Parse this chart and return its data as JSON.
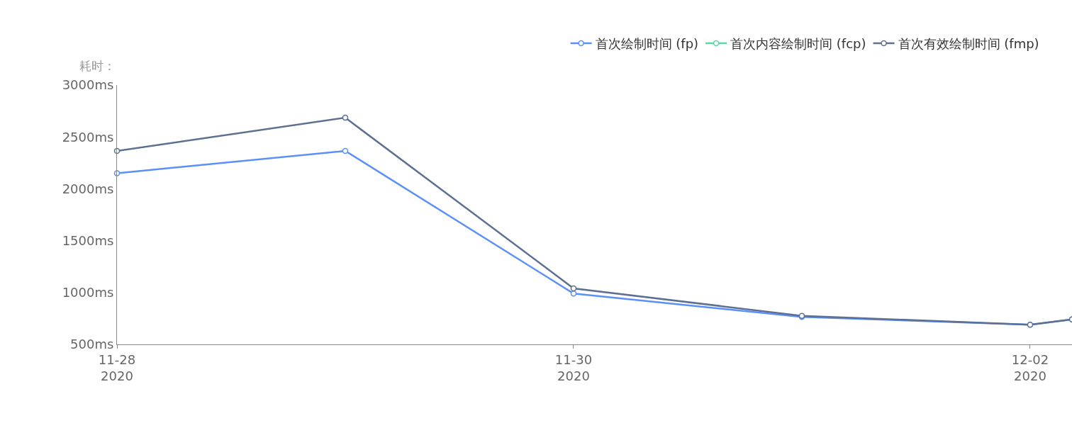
{
  "chart_data": {
    "type": "line",
    "ylabel": "耗时：",
    "x": [
      "2020-11-28",
      "2020-11-29",
      "2020-11-30",
      "2020-12-01",
      "2020-12-02",
      "2020-12-02T04:24"
    ],
    "series": [
      {
        "name": "首次绘制时间 (fp)",
        "color": "#5b8ff9",
        "values": [
          2150,
          2365,
          990,
          765,
          690,
          740
        ]
      },
      {
        "name": "首次内容绘制时间 (fcp)",
        "color": "#5ad8a6",
        "values": [
          null,
          null,
          null,
          null,
          null,
          null
        ]
      },
      {
        "name": "首次有效绘制时间 (fmp)",
        "color": "#5d7092",
        "values": [
          2365,
          2685,
          1040,
          775,
          690,
          740
        ]
      }
    ],
    "xlim": [
      "2020-11-28",
      "2020-12-02T04:24"
    ],
    "xticks": [
      {
        "value": "2020-11-28",
        "label": "11-28\n2020"
      },
      {
        "value": "2020-11-30",
        "label": "11-30\n2020"
      },
      {
        "value": "2020-12-02",
        "label": "12-02\n2020"
      }
    ],
    "ylim": [
      500,
      3000
    ],
    "yticks": [
      {
        "value": 500,
        "label": "500ms"
      },
      {
        "value": 1000,
        "label": "1000ms"
      },
      {
        "value": 1500,
        "label": "1500ms"
      },
      {
        "value": 2000,
        "label": "2000ms"
      },
      {
        "value": 2500,
        "label": "2500ms"
      },
      {
        "value": 3000,
        "label": "3000ms"
      }
    ],
    "legend": "top right",
    "marker": "circle",
    "line_style": "solid"
  }
}
